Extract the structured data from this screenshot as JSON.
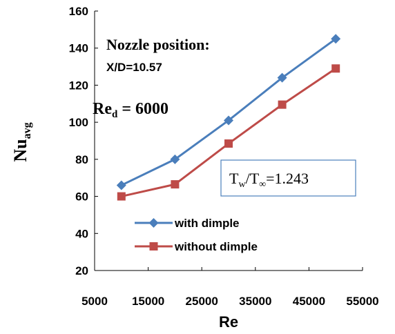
{
  "chart_data": {
    "type": "line",
    "xlabel": "Re",
    "ylabel": {
      "main": "Nu",
      "sub": "avg"
    },
    "xlim": [
      5000,
      55000
    ],
    "ylim": [
      20,
      160
    ],
    "x_ticks": [
      "5000",
      "15000",
      "25000",
      "35000",
      "45000",
      "55000"
    ],
    "y_ticks": [
      "20",
      "40",
      "60",
      "80",
      "100",
      "120",
      "140",
      "160"
    ],
    "x": [
      10000,
      20000,
      30000,
      40000,
      50000
    ],
    "series": [
      {
        "name": "with dimple",
        "color": "#4a7ebb",
        "marker": "diamond",
        "values": [
          66,
          80,
          101,
          124,
          145
        ]
      },
      {
        "name": "without dimple",
        "color": "#be4b48",
        "marker": "square",
        "values": [
          60,
          66.5,
          88.5,
          109.5,
          129
        ]
      }
    ],
    "legend_position": "bottom-right",
    "grid": false
  },
  "annotations": {
    "nozzle_title": "Nozzle position:",
    "nozzle_value": "X/D=10.57",
    "red_main": "Re",
    "red_sub": "d",
    "red_value": " = 6000",
    "ratio": {
      "t1": "T",
      "s1": "w",
      "slash": "/T",
      "s2": "∞",
      "value": "=1.243"
    }
  }
}
